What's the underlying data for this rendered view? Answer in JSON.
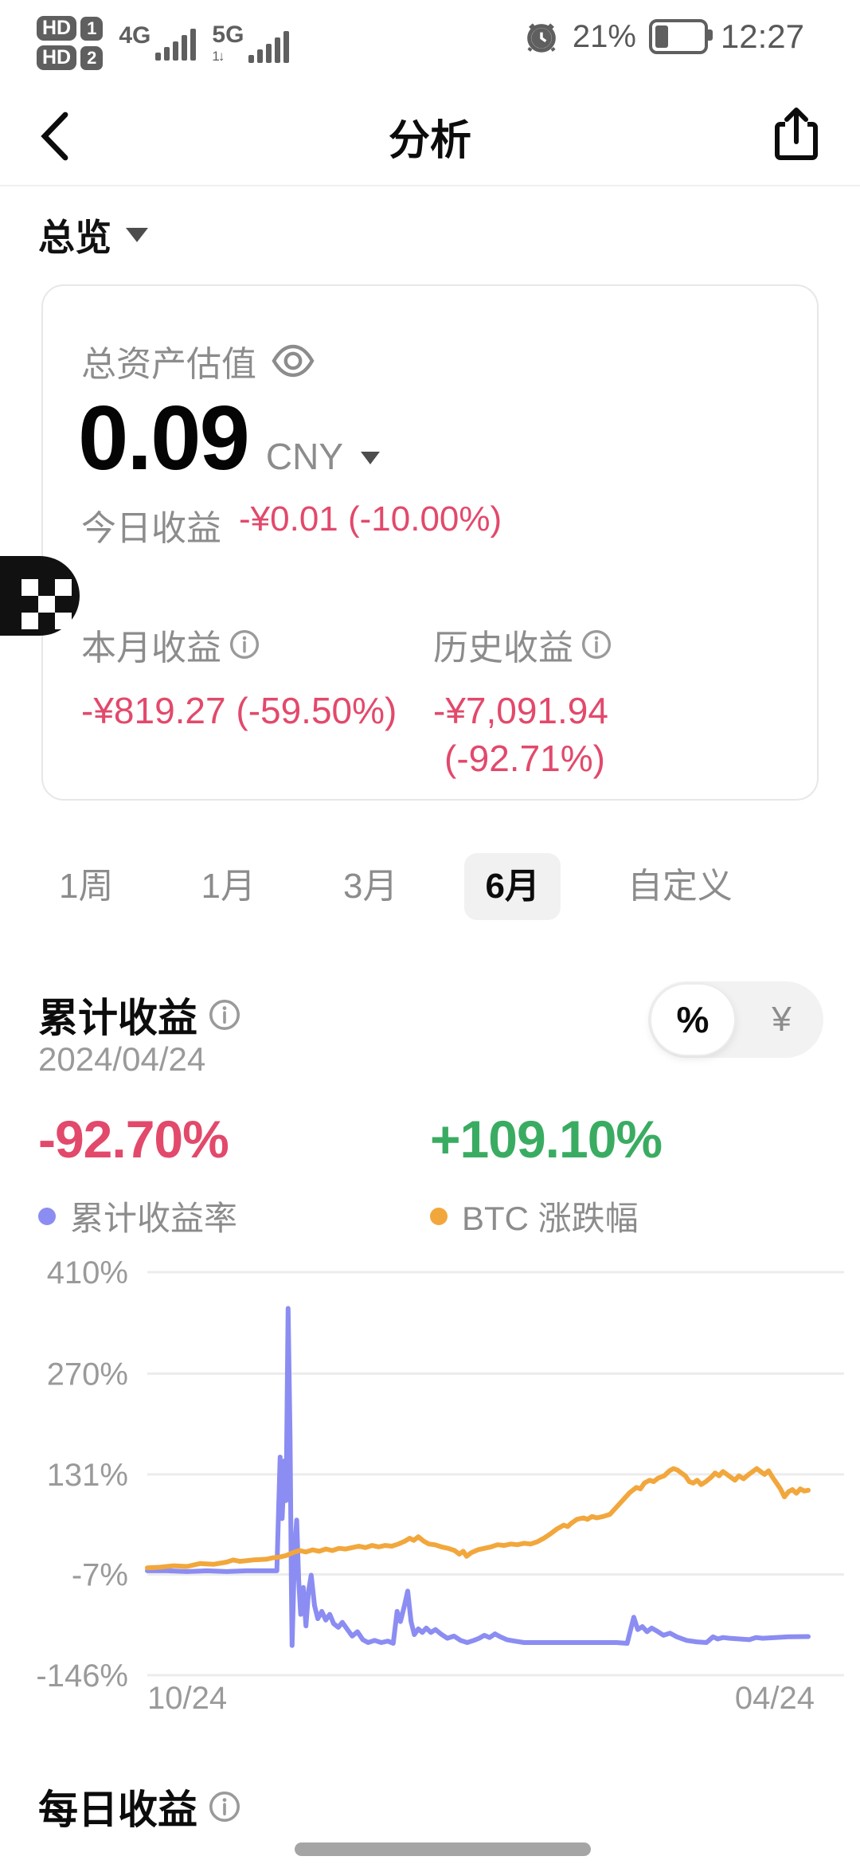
{
  "status_bar": {
    "sim1_label": "HD",
    "sim1_num": "1",
    "sim2_label": "HD",
    "sim2_num": "2",
    "net1": "4G",
    "net2": "5G",
    "net2_sub": "1↓",
    "battery_percent": "21%",
    "time": "12:27"
  },
  "nav": {
    "title": "分析"
  },
  "overview": {
    "label": "总览"
  },
  "asset_card": {
    "label": "总资产估值",
    "value": "0.09",
    "currency": "CNY",
    "today_label": "今日收益",
    "today_value": "-¥0.01 (-10.00%)",
    "month_label": "本月收益",
    "month_value": "-¥819.27 (-59.50%)",
    "history_label": "历史收益",
    "history_value_line1": "-¥7,091.94",
    "history_value_line2": "(-92.71%)"
  },
  "period_tabs": {
    "items": [
      {
        "label": "1周"
      },
      {
        "label": "1月"
      },
      {
        "label": "3月"
      },
      {
        "label": "6月"
      },
      {
        "label": "自定义"
      }
    ],
    "selected_index": 3
  },
  "cumulative": {
    "title": "累计收益",
    "date": "2024/04/24",
    "toggle_percent": "%",
    "toggle_yuan": "¥",
    "left_value": "-92.70%",
    "right_value": "+109.10%",
    "left_legend": "累计收益率",
    "right_legend": "BTC 涨跌幅"
  },
  "daily": {
    "title": "每日收益"
  },
  "colors": {
    "loss": "#e2496b",
    "gain": "#3aac62",
    "grid": "#ececec",
    "axis_text": "#9a9a9a",
    "purple_line": "#8b8df2",
    "orange_line": "#f2a73c"
  },
  "chart_data": {
    "type": "line",
    "title": "累计收益 (6月)",
    "yticks": [
      410,
      270,
      131,
      -7,
      -146
    ],
    "ylim": [
      -146,
      410
    ],
    "x_labels": [
      "10/24",
      "04/24"
    ],
    "grid": true,
    "legend_position": "above",
    "series": [
      {
        "name": "累计收益率",
        "color": "#8b8df2",
        "end_value": -92.7,
        "points": [
          [
            0,
            -2
          ],
          [
            3,
            -2
          ],
          [
            6,
            -3
          ],
          [
            9,
            -2
          ],
          [
            12,
            -3
          ],
          [
            15,
            -2
          ],
          [
            18,
            -2
          ],
          [
            19.6,
            -2
          ],
          [
            19.8,
            60
          ],
          [
            20.1,
            155
          ],
          [
            20.4,
            70
          ],
          [
            20.8,
            150
          ],
          [
            21,
            95
          ],
          [
            21.3,
            360
          ],
          [
            21.6,
            180
          ],
          [
            21.8,
            -20
          ],
          [
            21.9,
            -105
          ],
          [
            22.3,
            30
          ],
          [
            22.6,
            68
          ],
          [
            22.9,
            -15
          ],
          [
            23.2,
            -62
          ],
          [
            23.6,
            -25
          ],
          [
            24,
            -78
          ],
          [
            24.4,
            -30
          ],
          [
            24.8,
            -8
          ],
          [
            25.3,
            -50
          ],
          [
            25.8,
            -68
          ],
          [
            26.4,
            -58
          ],
          [
            27,
            -70
          ],
          [
            27.6,
            -62
          ],
          [
            28.2,
            -75
          ],
          [
            28.9,
            -80
          ],
          [
            29.5,
            -73
          ],
          [
            30.2,
            -82
          ],
          [
            31,
            -92
          ],
          [
            31.8,
            -86
          ],
          [
            32.6,
            -97
          ],
          [
            33.4,
            -101
          ],
          [
            34.4,
            -98
          ],
          [
            35.4,
            -101
          ],
          [
            36.4,
            -99
          ],
          [
            37.2,
            -102
          ],
          [
            37.8,
            -58
          ],
          [
            38.3,
            -72
          ],
          [
            38.9,
            -50
          ],
          [
            39.4,
            -30
          ],
          [
            39.9,
            -72
          ],
          [
            40.4,
            -90
          ],
          [
            41,
            -82
          ],
          [
            41.6,
            -87
          ],
          [
            42.2,
            -81
          ],
          [
            42.9,
            -87
          ],
          [
            43.6,
            -83
          ],
          [
            44.4,
            -89
          ],
          [
            45.4,
            -95
          ],
          [
            46.4,
            -92
          ],
          [
            47.4,
            -98
          ],
          [
            48.4,
            -101
          ],
          [
            49.4,
            -98
          ],
          [
            50.2,
            -95
          ],
          [
            51,
            -91
          ],
          [
            51.8,
            -94
          ],
          [
            52.6,
            -89
          ],
          [
            53.4,
            -93
          ],
          [
            54.4,
            -97
          ],
          [
            55.6,
            -99
          ],
          [
            57,
            -101
          ],
          [
            59,
            -101
          ],
          [
            61,
            -101
          ],
          [
            63,
            -101
          ],
          [
            65,
            -101
          ],
          [
            67,
            -101
          ],
          [
            69,
            -101
          ],
          [
            71,
            -101
          ],
          [
            72.6,
            -102
          ],
          [
            73.6,
            -66
          ],
          [
            74.2,
            -83
          ],
          [
            74.9,
            -79
          ],
          [
            75.6,
            -86
          ],
          [
            76.3,
            -81
          ],
          [
            77.1,
            -85
          ],
          [
            78.1,
            -91
          ],
          [
            79.1,
            -88
          ],
          [
            80.1,
            -93
          ],
          [
            81.6,
            -98
          ],
          [
            83.1,
            -100
          ],
          [
            84.6,
            -101
          ],
          [
            85.6,
            -93
          ],
          [
            86.3,
            -96
          ],
          [
            87.1,
            -94
          ],
          [
            88.1,
            -95
          ],
          [
            89.6,
            -96
          ],
          [
            91.1,
            -97
          ],
          [
            92.1,
            -94
          ],
          [
            93.1,
            -95
          ],
          [
            95,
            -94
          ],
          [
            97,
            -93
          ],
          [
            100,
            -92.7
          ]
        ]
      },
      {
        "name": "BTC 涨跌幅",
        "color": "#f2a73c",
        "end_value": 109.1,
        "points": [
          [
            0,
            2
          ],
          [
            2,
            3
          ],
          [
            4,
            5
          ],
          [
            6,
            4
          ],
          [
            8,
            8
          ],
          [
            10,
            7
          ],
          [
            12,
            10
          ],
          [
            13,
            13
          ],
          [
            14,
            11
          ],
          [
            16,
            13
          ],
          [
            18,
            14
          ],
          [
            19,
            16
          ],
          [
            20,
            17
          ],
          [
            21,
            19
          ],
          [
            22,
            23
          ],
          [
            23,
            26
          ],
          [
            24,
            24
          ],
          [
            25,
            27
          ],
          [
            26,
            25
          ],
          [
            27,
            28
          ],
          [
            28,
            26
          ],
          [
            29,
            29
          ],
          [
            30,
            28
          ],
          [
            31,
            30
          ],
          [
            32,
            32
          ],
          [
            33,
            30
          ],
          [
            34,
            33
          ],
          [
            35,
            31
          ],
          [
            36,
            33
          ],
          [
            37,
            32
          ],
          [
            38,
            35
          ],
          [
            39,
            39
          ],
          [
            39.7,
            43
          ],
          [
            40.3,
            40
          ],
          [
            41,
            45
          ],
          [
            41.8,
            39
          ],
          [
            42.6,
            35
          ],
          [
            43.5,
            34
          ],
          [
            44.5,
            31
          ],
          [
            45.5,
            29
          ],
          [
            46.5,
            26
          ],
          [
            47.2,
            21
          ],
          [
            47.8,
            25
          ],
          [
            48.3,
            18
          ],
          [
            49,
            23
          ],
          [
            50,
            27
          ],
          [
            51,
            29
          ],
          [
            52,
            31
          ],
          [
            53,
            34
          ],
          [
            54,
            33
          ],
          [
            55,
            35
          ],
          [
            56,
            34
          ],
          [
            57,
            36
          ],
          [
            58,
            35
          ],
          [
            59,
            38
          ],
          [
            60,
            43
          ],
          [
            61,
            49
          ],
          [
            62,
            56
          ],
          [
            63,
            61
          ],
          [
            63.6,
            59
          ],
          [
            64.2,
            64
          ],
          [
            65,
            69
          ],
          [
            66,
            71
          ],
          [
            66.6,
            69
          ],
          [
            67.3,
            73
          ],
          [
            68,
            71
          ],
          [
            69,
            73
          ],
          [
            70,
            76
          ],
          [
            71,
            86
          ],
          [
            72,
            96
          ],
          [
            73,
            106
          ],
          [
            74,
            113
          ],
          [
            74.6,
            111
          ],
          [
            75.2,
            119
          ],
          [
            76,
            123
          ],
          [
            76.6,
            121
          ],
          [
            77.3,
            126
          ],
          [
            78.2,
            129
          ],
          [
            79,
            136
          ],
          [
            79.6,
            139
          ],
          [
            80.2,
            137
          ],
          [
            80.8,
            133
          ],
          [
            81.4,
            129
          ],
          [
            82,
            121
          ],
          [
            82.6,
            119
          ],
          [
            83.2,
            123
          ],
          [
            83.8,
            117
          ],
          [
            84.5,
            121
          ],
          [
            85.3,
            127
          ],
          [
            85.9,
            133
          ],
          [
            86.5,
            129
          ],
          [
            87.1,
            135
          ],
          [
            87.7,
            131
          ],
          [
            88.3,
            127
          ],
          [
            88.9,
            123
          ],
          [
            89.5,
            129
          ],
          [
            90.2,
            125
          ],
          [
            91,
            131
          ],
          [
            91.6,
            135
          ],
          [
            92.2,
            139
          ],
          [
            92.8,
            135
          ],
          [
            93.4,
            131
          ],
          [
            94,
            136
          ],
          [
            94.6,
            127
          ],
          [
            95.2,
            119
          ],
          [
            95.8,
            111
          ],
          [
            96.4,
            100
          ],
          [
            97,
            107
          ],
          [
            97.6,
            110
          ],
          [
            98.2,
            105
          ],
          [
            98.8,
            111
          ],
          [
            99.4,
            108
          ],
          [
            100,
            109.1
          ]
        ]
      }
    ]
  }
}
